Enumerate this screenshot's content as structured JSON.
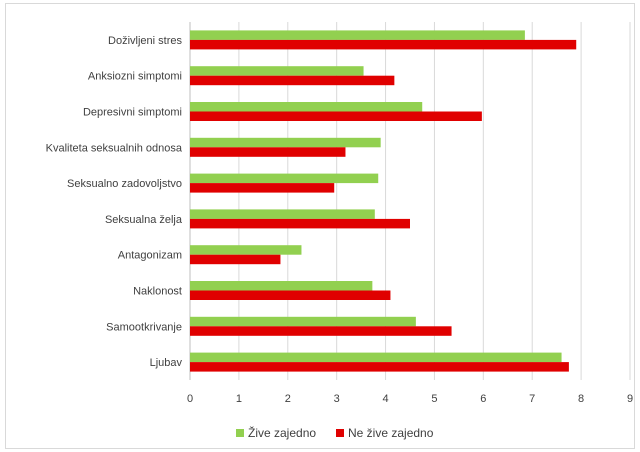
{
  "chart_data": {
    "type": "bar",
    "orientation": "horizontal",
    "title": "",
    "xlabel": "",
    "ylabel": "",
    "categories": [
      "Doživljeni stres",
      "Anksiozni simptomi",
      "Depresivni simptomi",
      "Kvaliteta seksualnih odnosa",
      "Seksualno zadovoljstvo",
      "Seksualna želja",
      "Antagonizam",
      "Naklonost",
      "Samootkrivanje",
      "Ljubav"
    ],
    "series": [
      {
        "name": "Žive zajedno",
        "color": "#92d050",
        "values": [
          6.85,
          3.55,
          4.75,
          3.9,
          3.85,
          3.78,
          2.28,
          3.73,
          4.62,
          7.6
        ]
      },
      {
        "name": "Ne žive zajedno",
        "color": "#e00000",
        "values": [
          7.9,
          4.18,
          5.97,
          3.18,
          2.95,
          4.5,
          1.85,
          4.1,
          5.35,
          7.75
        ]
      }
    ],
    "xlim": [
      0,
      9
    ],
    "xticks": [
      "0",
      "1",
      "2",
      "3",
      "4",
      "5",
      "6",
      "7",
      "8",
      "9"
    ],
    "grid": "vertical",
    "legend_position": "bottom"
  }
}
